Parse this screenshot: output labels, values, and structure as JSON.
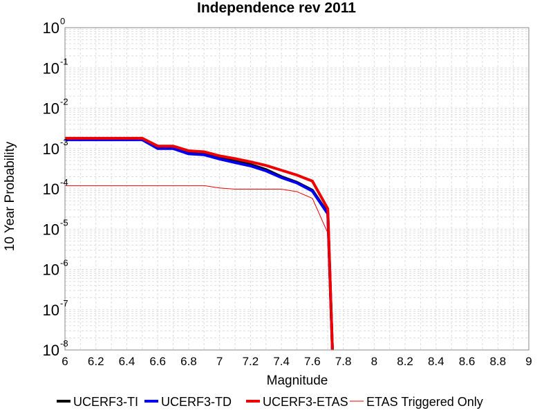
{
  "chart_data": {
    "type": "line",
    "title": "Independence rev 2011",
    "xlabel": "Magnitude",
    "ylabel": "10 Year Probability",
    "xlim": [
      6,
      9
    ],
    "ylim": [
      1e-08,
      1
    ],
    "yscale": "log",
    "grid": true,
    "legend_position": "bottom",
    "x_ticks": [
      "6",
      "6.2",
      "6.4",
      "6.6",
      "6.8",
      "7",
      "7.2",
      "7.4",
      "7.6",
      "7.8",
      "8",
      "8.2",
      "8.4",
      "8.6",
      "8.8",
      "9"
    ],
    "y_ticks": [
      {
        "base": "10",
        "exp": "-8"
      },
      {
        "base": "10",
        "exp": "-7"
      },
      {
        "base": "10",
        "exp": "-6"
      },
      {
        "base": "10",
        "exp": "-5"
      },
      {
        "base": "10",
        "exp": "-4"
      },
      {
        "base": "10",
        "exp": "-3"
      },
      {
        "base": "10",
        "exp": "-2"
      },
      {
        "base": "10",
        "exp": "-1"
      },
      {
        "base": "10",
        "exp": "0"
      }
    ],
    "series": [
      {
        "name": "UCERF3-TI",
        "color": "#000000",
        "x": [
          6.0,
          6.1,
          6.2,
          6.3,
          6.4,
          6.5,
          6.6,
          6.7,
          6.8,
          6.9,
          7.0,
          7.1,
          7.2,
          7.3,
          7.4,
          7.5,
          7.6,
          7.7,
          7.73
        ],
        "y": [
          0.0017,
          0.0017,
          0.0017,
          0.0017,
          0.0017,
          0.0017,
          0.00105,
          0.00105,
          0.00078,
          0.00074,
          0.00058,
          0.00048,
          0.0004,
          0.0003,
          0.0002,
          0.000145,
          9.2e-05,
          2.5e-05,
          1e-08
        ]
      },
      {
        "name": "UCERF3-TD",
        "color": "#0000ee",
        "x": [
          6.0,
          6.1,
          6.2,
          6.3,
          6.4,
          6.5,
          6.6,
          6.7,
          6.8,
          6.9,
          7.0,
          7.1,
          7.2,
          7.3,
          7.4,
          7.5,
          7.6,
          7.7,
          7.73
        ],
        "y": [
          0.00165,
          0.00165,
          0.00165,
          0.00165,
          0.00165,
          0.00165,
          0.001,
          0.001,
          0.00074,
          0.0007,
          0.00055,
          0.00045,
          0.00037,
          0.00028,
          0.00019,
          0.00014,
          8.8e-05,
          2.4e-05,
          1e-08
        ]
      },
      {
        "name": "UCERF3-ETAS",
        "color": "#ee0000",
        "x": [
          6.0,
          6.1,
          6.2,
          6.3,
          6.4,
          6.5,
          6.6,
          6.7,
          6.8,
          6.9,
          7.0,
          7.1,
          7.2,
          7.3,
          7.4,
          7.5,
          7.6,
          7.7,
          7.73
        ],
        "y": [
          0.0018,
          0.0018,
          0.0018,
          0.0018,
          0.0018,
          0.0018,
          0.00115,
          0.00115,
          0.00088,
          0.00083,
          0.00066,
          0.00056,
          0.00047,
          0.00038,
          0.00029,
          0.00022,
          0.000155,
          3.2e-05,
          1e-08
        ]
      },
      {
        "name": "ETAS Triggered Only",
        "color": "#ee0000",
        "thin": true,
        "x": [
          6.0,
          6.1,
          6.2,
          6.3,
          6.4,
          6.5,
          6.6,
          6.7,
          6.8,
          6.9,
          7.0,
          7.1,
          7.2,
          7.3,
          7.4,
          7.5,
          7.6,
          7.7,
          7.73
        ],
        "y": [
          0.00012,
          0.00012,
          0.00012,
          0.00012,
          0.00012,
          0.00012,
          0.00012,
          0.00012,
          0.00012,
          0.00012,
          0.000105,
          9.8e-05,
          9.8e-05,
          9.8e-05,
          9.8e-05,
          8.5e-05,
          5.8e-05,
          8e-06,
          1e-08
        ]
      }
    ]
  }
}
